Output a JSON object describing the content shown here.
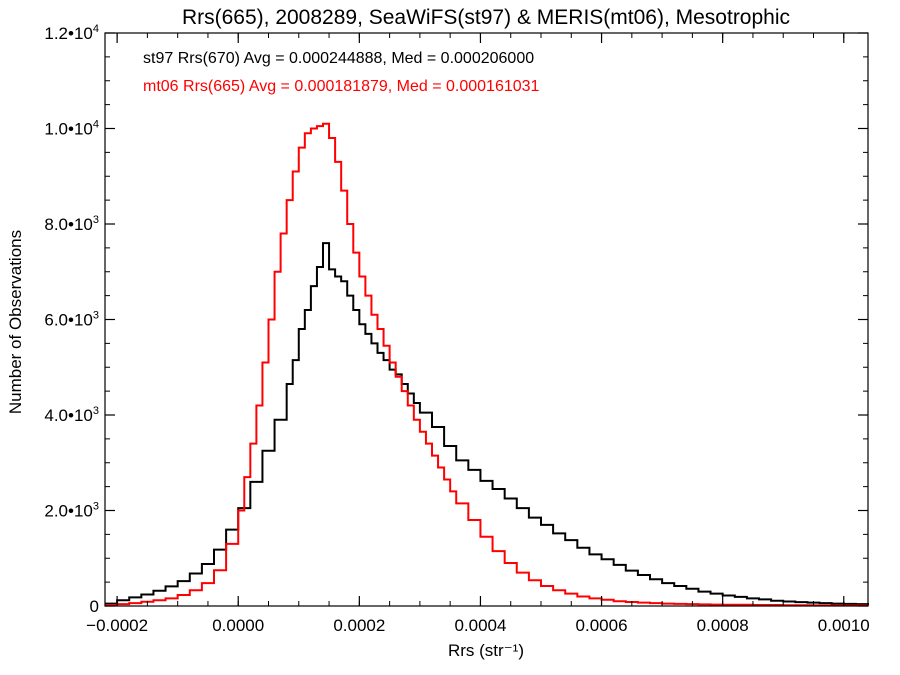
{
  "chart_data": {
    "type": "line",
    "title": "Rrs(665), 2008289, SeaWiFS(st97) & MERIS(mt06), Mesotrophic",
    "xlabel": "Rrs (str⁻¹)",
    "ylabel": "Number of Observations",
    "xlim": [
      -0.00022,
      0.00104
    ],
    "ylim": [
      0,
      12000
    ],
    "x_ticks": [
      -0.0002,
      0.0,
      0.0002,
      0.0004,
      0.0006,
      0.0008,
      0.001
    ],
    "x_tick_labels": [
      "−0.0002",
      "0.0000",
      "0.0002",
      "0.0004",
      "0.0006",
      "0.0008",
      "0.0010"
    ],
    "y_ticks": [
      0,
      2000,
      4000,
      6000,
      8000,
      10000,
      12000
    ],
    "y_tick_labels": [
      {
        "mant": "0",
        "exp": ""
      },
      {
        "mant": "2.0•10",
        "exp": "3"
      },
      {
        "mant": "4.0•10",
        "exp": "3"
      },
      {
        "mant": "6.0•10",
        "exp": "3"
      },
      {
        "mant": "8.0•10",
        "exp": "3"
      },
      {
        "mant": "1.0•10",
        "exp": "4"
      },
      {
        "mant": "1.2•10",
        "exp": "4"
      }
    ],
    "legend_placement": "top-left",
    "series": [
      {
        "name": "st97 Rrs(670) Avg = 0.000244888, Med = 0.000206000",
        "color": "#000000",
        "style": "step",
        "x": [
          -0.00022,
          -0.0002,
          -0.00018,
          -0.00016,
          -0.00014,
          -0.00012,
          -0.0001,
          -8e-05,
          -6e-05,
          -4e-05,
          -2e-05,
          0.0,
          2e-05,
          4e-05,
          6e-05,
          8e-05,
          9e-05,
          0.0001,
          0.00011,
          0.00012,
          0.00013,
          0.00014,
          0.00015,
          0.00016,
          0.00017,
          0.00018,
          0.00019,
          0.0002,
          0.00021,
          0.00022,
          0.00023,
          0.00024,
          0.00025,
          0.00026,
          0.00027,
          0.00028,
          0.00029,
          0.0003,
          0.00032,
          0.00034,
          0.00036,
          0.00038,
          0.0004,
          0.00042,
          0.00044,
          0.00046,
          0.00048,
          0.0005,
          0.00052,
          0.00054,
          0.00056,
          0.00058,
          0.0006,
          0.00062,
          0.00064,
          0.00066,
          0.00068,
          0.0007,
          0.00072,
          0.00074,
          0.00076,
          0.00078,
          0.0008,
          0.00082,
          0.00084,
          0.00086,
          0.00088,
          0.0009,
          0.00092,
          0.00094,
          0.00096,
          0.00098,
          0.001,
          0.00102,
          0.00104
        ],
        "y": [
          50,
          120,
          180,
          240,
          320,
          410,
          520,
          680,
          880,
          1180,
          1600,
          2050,
          2600,
          3250,
          3900,
          4650,
          5150,
          5800,
          6200,
          6700,
          7100,
          7600,
          7050,
          6900,
          6800,
          6500,
          6200,
          5900,
          5700,
          5500,
          5300,
          5150,
          4950,
          4850,
          4650,
          4450,
          4250,
          4050,
          3750,
          3350,
          3050,
          2850,
          2620,
          2450,
          2250,
          2050,
          1850,
          1700,
          1520,
          1380,
          1220,
          1080,
          980,
          860,
          740,
          650,
          560,
          480,
          420,
          360,
          300,
          260,
          220,
          190,
          160,
          140,
          110,
          95,
          80,
          70,
          60,
          50,
          45,
          40,
          30
        ]
      },
      {
        "name": "mt06 Rrs(665) Avg = 0.000181879, Med = 0.000161031",
        "color": "#ff0000",
        "style": "step",
        "x": [
          -0.00022,
          -0.0002,
          -0.00018,
          -0.00016,
          -0.00014,
          -0.00012,
          -0.0001,
          -8e-05,
          -6e-05,
          -4e-05,
          -2e-05,
          0.0,
          1e-05,
          2e-05,
          3e-05,
          4e-05,
          5e-05,
          6e-05,
          7e-05,
          8e-05,
          9e-05,
          0.0001,
          0.00011,
          0.00012,
          0.00013,
          0.00014,
          0.00015,
          0.00016,
          0.00017,
          0.00018,
          0.00019,
          0.0002,
          0.00021,
          0.00022,
          0.00023,
          0.00024,
          0.00025,
          0.00026,
          0.00027,
          0.00028,
          0.00029,
          0.0003,
          0.00031,
          0.00032,
          0.00033,
          0.00034,
          0.00035,
          0.00036,
          0.00038,
          0.0004,
          0.00042,
          0.00044,
          0.00046,
          0.00048,
          0.0005,
          0.00052,
          0.00054,
          0.00056,
          0.00058,
          0.0006,
          0.00062,
          0.00064,
          0.00066,
          0.00068,
          0.0007,
          0.00072,
          0.00074,
          0.00076,
          0.00078,
          0.0008,
          0.00085,
          0.0009,
          0.00095,
          0.001,
          0.00104
        ],
        "y": [
          20,
          40,
          60,
          90,
          120,
          160,
          230,
          330,
          480,
          750,
          1300,
          2000,
          2700,
          3400,
          4200,
          5100,
          6000,
          7000,
          7800,
          8500,
          9100,
          9600,
          9900,
          10000,
          10050,
          10100,
          9800,
          9300,
          8700,
          8000,
          7400,
          6900,
          6500,
          6100,
          5800,
          5450,
          5100,
          4800,
          4500,
          4200,
          3900,
          3650,
          3400,
          3150,
          2900,
          2650,
          2400,
          2150,
          1800,
          1450,
          1150,
          900,
          700,
          540,
          420,
          330,
          260,
          200,
          160,
          130,
          100,
          85,
          70,
          60,
          50,
          45,
          40,
          35,
          30,
          25,
          20,
          15,
          12,
          10,
          8
        ]
      }
    ]
  }
}
